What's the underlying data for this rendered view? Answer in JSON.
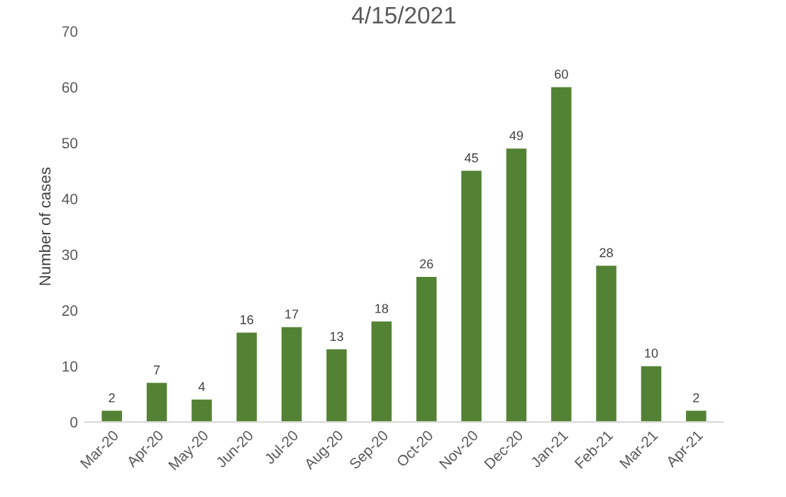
{
  "chart_data": {
    "type": "bar",
    "title": "4/15/2021",
    "ylabel": "Number of cases",
    "categories": [
      "Mar-20",
      "Apr-20",
      "May-20",
      "Jun-20",
      "Jul-20",
      "Aug-20",
      "Sep-20",
      "Oct-20",
      "Nov-20",
      "Dec-20",
      "Jan-21",
      "Feb-21",
      "Mar-21",
      "Apr-21"
    ],
    "values": [
      2,
      7,
      4,
      16,
      17,
      13,
      18,
      26,
      45,
      49,
      60,
      28,
      10,
      2
    ],
    "color": "#548235",
    "ylim": [
      0,
      70
    ],
    "yticks": [
      0,
      10,
      20,
      30,
      40,
      50,
      60,
      70
    ],
    "grid": false,
    "data_labels": true
  }
}
